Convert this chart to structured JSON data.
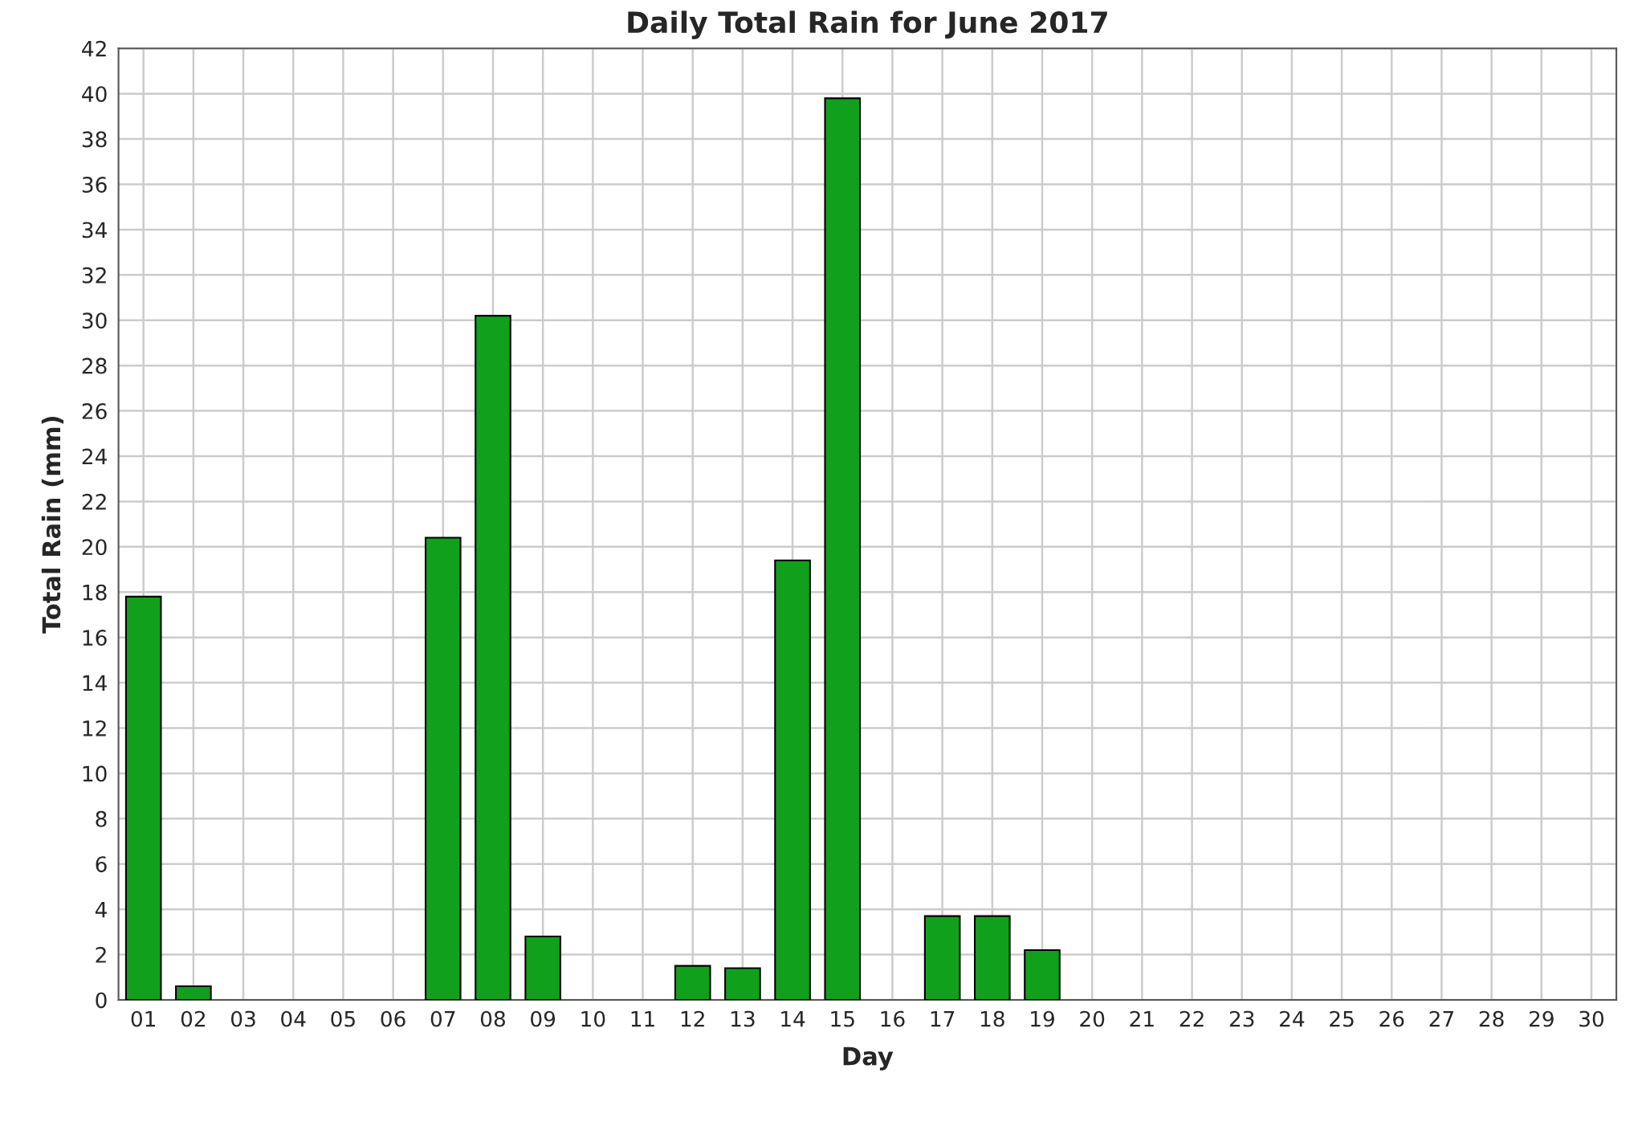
{
  "chart_data": {
    "type": "bar",
    "title": "Daily Total Rain for June 2017",
    "xlabel": "Day",
    "ylabel": "Total Rain (mm)",
    "categories": [
      "01",
      "02",
      "03",
      "04",
      "05",
      "06",
      "07",
      "08",
      "09",
      "10",
      "11",
      "12",
      "13",
      "14",
      "15",
      "16",
      "17",
      "18",
      "19",
      "20",
      "21",
      "22",
      "23",
      "24",
      "25",
      "26",
      "27",
      "28",
      "29",
      "30"
    ],
    "values": [
      17.8,
      0.6,
      null,
      null,
      null,
      null,
      20.4,
      30.2,
      2.8,
      null,
      null,
      1.5,
      1.4,
      19.4,
      39.8,
      null,
      3.7,
      3.7,
      2.2,
      null,
      null,
      null,
      null,
      null,
      null,
      null,
      null,
      null,
      null,
      null
    ],
    "color": "#11a01c",
    "ylim": [
      0,
      42
    ],
    "yticks": [
      0,
      2,
      4,
      6,
      8,
      10,
      12,
      14,
      16,
      18,
      20,
      22,
      24,
      26,
      28,
      30,
      32,
      34,
      36,
      38,
      40,
      42
    ],
    "grid": true
  }
}
